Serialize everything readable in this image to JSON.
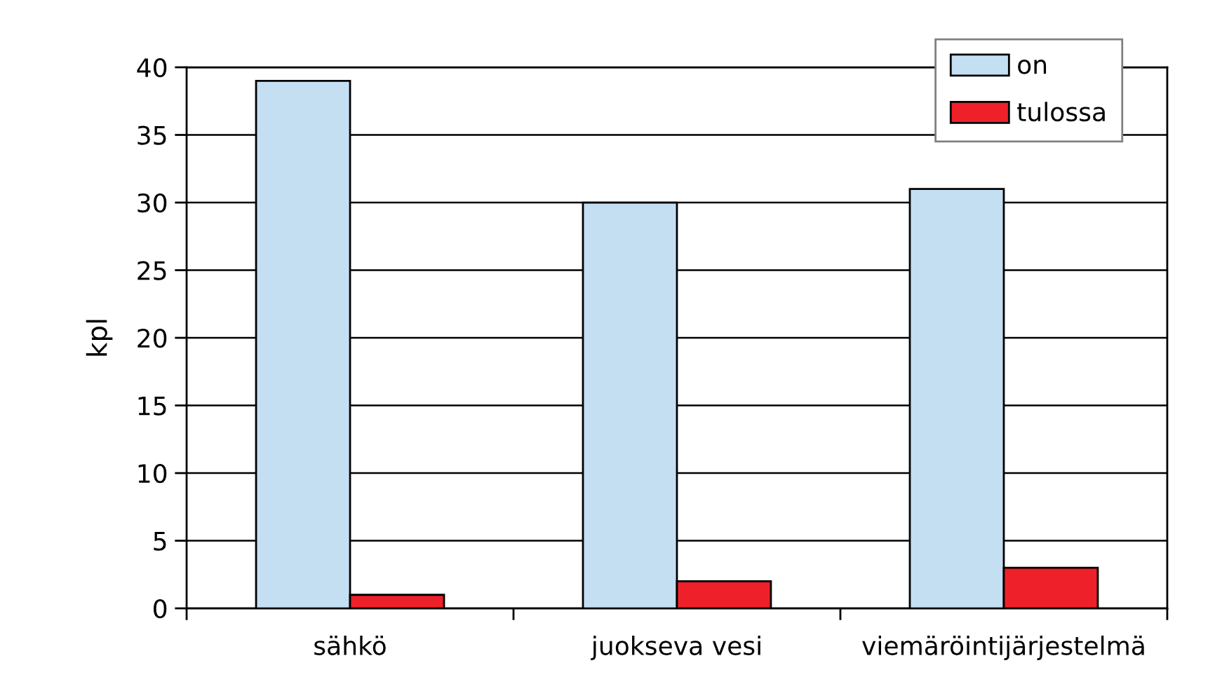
{
  "chart_data": {
    "type": "bar",
    "categories": [
      "sähkö",
      "juokseva vesi",
      "viemäröintijärjestelmä"
    ],
    "series": [
      {
        "name": "on",
        "color": "#c5dff2",
        "values": [
          39,
          30,
          31
        ]
      },
      {
        "name": "tulossa",
        "color": "#ee2029",
        "values": [
          1,
          2,
          3
        ]
      }
    ],
    "ylabel": "kpl",
    "ylim": [
      0,
      40
    ],
    "yticks": [
      0,
      5,
      10,
      15,
      20,
      25,
      30,
      35,
      40
    ],
    "grid": "y",
    "legend": "top right"
  }
}
